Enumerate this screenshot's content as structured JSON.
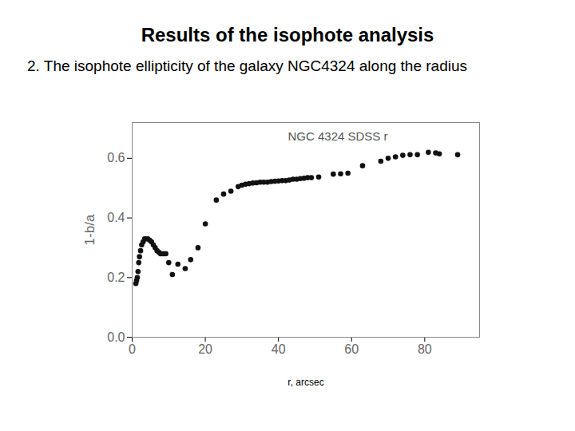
{
  "chart_data": {
    "type": "scatter",
    "title": "Results of the isophote analysis",
    "subtitle": "2. The isophote ellipticity of the galaxy NGC4324 along the radius",
    "annotation": "NGC 4324 SDSS r",
    "x_label": "r, arcsec",
    "y_label": "1-b/a",
    "color": "#111111",
    "marker": "circle",
    "x": [
      1,
      1.2,
      1.4,
      1.6,
      1.8,
      2,
      2.3,
      2.6,
      3,
      3.4,
      3.8,
      4.3,
      4.8,
      5.3,
      5.8,
      6.3,
      6.8,
      7.3,
      7.8,
      8.5,
      9.2,
      10,
      11,
      12.5,
      14.5,
      16,
      18,
      20,
      23,
      25,
      27,
      29,
      30,
      31,
      32,
      33,
      34,
      35,
      36,
      37,
      38,
      39,
      40,
      41,
      42,
      43,
      44,
      45,
      46,
      47,
      48,
      49,
      51,
      55,
      57,
      59,
      63,
      68,
      70,
      72,
      74,
      76,
      78,
      81,
      83,
      84,
      89
    ],
    "values": [
      0.18,
      0.19,
      0.2,
      0.22,
      0.25,
      0.27,
      0.29,
      0.31,
      0.32,
      0.33,
      0.33,
      0.33,
      0.325,
      0.32,
      0.31,
      0.3,
      0.29,
      0.285,
      0.28,
      0.28,
      0.28,
      0.25,
      0.21,
      0.245,
      0.23,
      0.26,
      0.3,
      0.38,
      0.46,
      0.48,
      0.49,
      0.505,
      0.51,
      0.513,
      0.515,
      0.517,
      0.518,
      0.52,
      0.52,
      0.52,
      0.522,
      0.523,
      0.524,
      0.525,
      0.525,
      0.527,
      0.53,
      0.53,
      0.532,
      0.533,
      0.535,
      0.535,
      0.537,
      0.547,
      0.548,
      0.55,
      0.575,
      0.59,
      0.6,
      0.605,
      0.61,
      0.612,
      0.612,
      0.62,
      0.618,
      0.615,
      0.612
    ],
    "xlim": [
      0,
      95
    ],
    "xticks": [
      0,
      20,
      40,
      60,
      80
    ],
    "ylim": [
      0,
      0.72
    ],
    "yticks": [
      {
        "value": 0,
        "label": "0.0"
      },
      {
        "value": 0.2,
        "label": "0.2"
      },
      {
        "value": 0.4,
        "label": "0.4"
      },
      {
        "value": 0.6,
        "label": "0.6"
      }
    ],
    "grid": false
  }
}
